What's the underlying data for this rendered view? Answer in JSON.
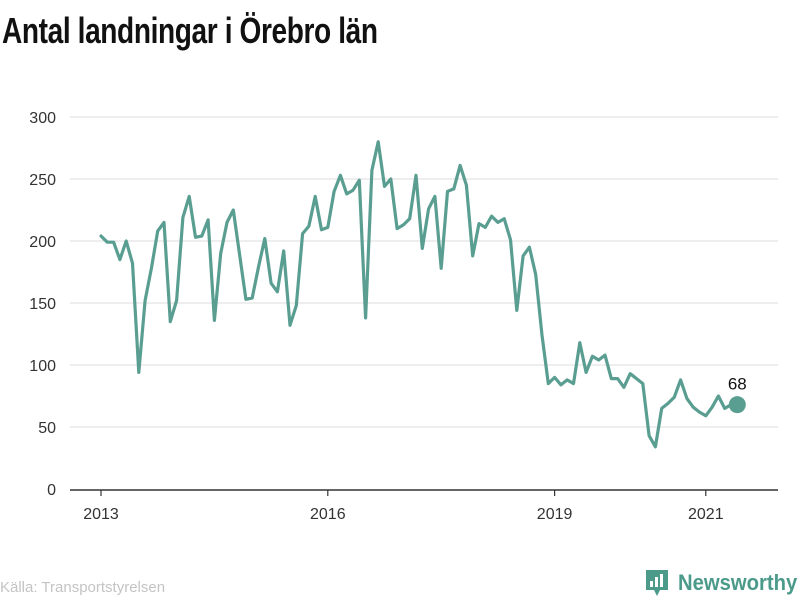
{
  "title": "Antal landningar i Örebro län",
  "source": "Källa: Transportstyrelsen",
  "brand": {
    "name": "Newsworthy",
    "icon": "newsworthy-logo-icon",
    "color": "#4b9a8a"
  },
  "chart_data": {
    "type": "line",
    "title": "Antal landningar i Örebro län",
    "xlabel": "",
    "ylabel": "",
    "ylim": [
      0,
      300
    ],
    "y_ticks": [
      0,
      50,
      100,
      150,
      200,
      250,
      300
    ],
    "x_ticks": [
      "2013",
      "2016",
      "2019",
      "2021"
    ],
    "x_start": "2013-01",
    "grid": true,
    "line_color": "#5a9e92",
    "end_label": "68",
    "series": [
      {
        "values": [
          204,
          199,
          199,
          185,
          200,
          182,
          94,
          152,
          178,
          208,
          215,
          135,
          152,
          219,
          236,
          203,
          204,
          217,
          136,
          190,
          215,
          225,
          189,
          153,
          154,
          179,
          202,
          166,
          159,
          192,
          132,
          148,
          206,
          212,
          236,
          209,
          211,
          240,
          253,
          238,
          241,
          249,
          138,
          257,
          280,
          244,
          250,
          210,
          213,
          218,
          253,
          194,
          226,
          236,
          178,
          240,
          242,
          261,
          245,
          188,
          214,
          211,
          220,
          215,
          218,
          201,
          144,
          188,
          195,
          173,
          124,
          85,
          90,
          84,
          88,
          85,
          118,
          94,
          107,
          104,
          108,
          89,
          89,
          82,
          93,
          89,
          85,
          43,
          34,
          65,
          69,
          74,
          88,
          73,
          66,
          62,
          59,
          66,
          75,
          65,
          68,
          68
        ]
      }
    ]
  }
}
